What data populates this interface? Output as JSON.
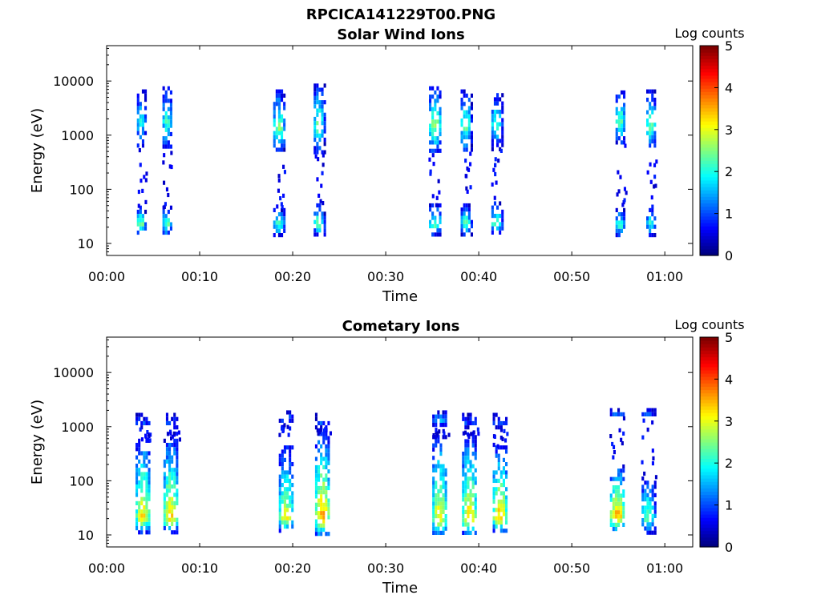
{
  "figure": {
    "title": "RPCICA141229T00.PNG"
  },
  "colorbar": {
    "label": "Log counts",
    "ticks": [
      "0",
      "1",
      "2",
      "3",
      "4",
      "5"
    ],
    "range": [
      0,
      5
    ],
    "colormap": "jet"
  },
  "chart_data": [
    {
      "type": "heatmap",
      "title": "Solar Wind Ions",
      "xlabel": "Time",
      "ylabel": "Energy (eV)",
      "x_ticks": [
        "00:00",
        "00:10",
        "00:20",
        "00:30",
        "00:40",
        "00:50",
        "01:00"
      ],
      "y_ticks": [
        "10",
        "100",
        "1000",
        "10000"
      ],
      "y_scale": "log",
      "xlim_minutes": [
        0,
        63
      ],
      "ylim": [
        6,
        45000
      ],
      "clim": [
        0,
        5
      ],
      "bursts": [
        {
          "time_min": 3.7,
          "width_min": 0.9,
          "high_energy": {
            "lo": 600,
            "hi": 7000,
            "peak": 1800,
            "level": 2.0
          },
          "low_energy": {
            "lo": 15,
            "hi": 50,
            "peak": 25,
            "level": 2.6
          }
        },
        {
          "time_min": 6.5,
          "width_min": 1.0,
          "high_energy": {
            "lo": 600,
            "hi": 8000,
            "peak": 1800,
            "level": 2.2
          },
          "low_energy": {
            "lo": 15,
            "hi": 50,
            "peak": 25,
            "level": 2.4
          }
        },
        {
          "time_min": 18.5,
          "width_min": 1.2,
          "high_energy": {
            "lo": 500,
            "hi": 7000,
            "peak": 1400,
            "level": 2.6
          },
          "low_energy": {
            "lo": 15,
            "hi": 45,
            "peak": 25,
            "level": 2.3
          }
        },
        {
          "time_min": 22.8,
          "width_min": 1.1,
          "high_energy": {
            "lo": 500,
            "hi": 9000,
            "peak": 1500,
            "level": 2.6
          },
          "low_energy": {
            "lo": 15,
            "hi": 55,
            "peak": 25,
            "level": 2.5
          }
        },
        {
          "time_min": 35.3,
          "width_min": 1.3,
          "high_energy": {
            "lo": 500,
            "hi": 8000,
            "peak": 1600,
            "level": 2.7
          },
          "low_energy": {
            "lo": 15,
            "hi": 55,
            "peak": 25,
            "level": 2.4
          }
        },
        {
          "time_min": 38.6,
          "width_min": 1.1,
          "high_energy": {
            "lo": 500,
            "hi": 7000,
            "peak": 1600,
            "level": 2.5
          },
          "low_energy": {
            "lo": 15,
            "hi": 55,
            "peak": 25,
            "level": 2.4
          }
        },
        {
          "time_min": 41.9,
          "width_min": 1.1,
          "high_energy": {
            "lo": 600,
            "hi": 6000,
            "peak": 1800,
            "level": 2.3
          },
          "low_energy": {
            "lo": 15,
            "hi": 60,
            "peak": 25,
            "level": 2.5
          }
        },
        {
          "time_min": 55.2,
          "width_min": 1.0,
          "high_energy": {
            "lo": 700,
            "hi": 8000,
            "peak": 2000,
            "level": 2.4
          },
          "low_energy": {
            "lo": 15,
            "hi": 45,
            "peak": 25,
            "level": 2.3
          }
        },
        {
          "time_min": 58.5,
          "width_min": 1.0,
          "high_energy": {
            "lo": 600,
            "hi": 7000,
            "peak": 1600,
            "level": 2.5
          },
          "low_energy": {
            "lo": 15,
            "hi": 45,
            "peak": 25,
            "level": 2.2
          }
        }
      ]
    },
    {
      "type": "heatmap",
      "title": "Cometary Ions",
      "xlabel": "Time",
      "ylabel": "Energy (eV)",
      "x_ticks": [
        "00:00",
        "00:10",
        "00:20",
        "00:30",
        "00:40",
        "00:50",
        "01:00"
      ],
      "y_ticks": [
        "10",
        "100",
        "1000",
        "10000"
      ],
      "y_scale": "log",
      "xlim_minutes": [
        0,
        63
      ],
      "ylim": [
        6,
        45000
      ],
      "clim": [
        0,
        5
      ],
      "bursts": [
        {
          "time_min": 3.9,
          "width_min": 1.6,
          "high_energy": {
            "lo": 1000,
            "hi": 1800,
            "peak": 1300,
            "level": 1.0
          },
          "low_energy": {
            "lo": 12,
            "hi": 600,
            "peak": 22,
            "level": 3.3
          }
        },
        {
          "time_min": 6.9,
          "width_min": 1.6,
          "high_energy": {
            "lo": 1000,
            "hi": 1800,
            "peak": 1300,
            "level": 1.0
          },
          "low_energy": {
            "lo": 12,
            "hi": 600,
            "peak": 22,
            "level": 3.4
          }
        },
        {
          "time_min": 19.3,
          "width_min": 1.6,
          "high_energy": {
            "lo": 1200,
            "hi": 2000,
            "peak": 1600,
            "level": 1.5
          },
          "low_energy": {
            "lo": 12,
            "hi": 450,
            "peak": 22,
            "level": 3.0
          }
        },
        {
          "time_min": 23.2,
          "width_min": 1.6,
          "high_energy": {
            "lo": 1000,
            "hi": 1800,
            "peak": 1300,
            "level": 1.0
          },
          "low_energy": {
            "lo": 10,
            "hi": 800,
            "peak": 22,
            "level": 3.6
          }
        },
        {
          "time_min": 35.8,
          "width_min": 1.6,
          "high_energy": {
            "lo": 1000,
            "hi": 2000,
            "peak": 1500,
            "level": 1.6
          },
          "low_energy": {
            "lo": 10,
            "hi": 700,
            "peak": 22,
            "level": 3.2
          }
        },
        {
          "time_min": 39.0,
          "width_min": 1.6,
          "high_energy": {
            "lo": 1000,
            "hi": 1800,
            "peak": 1300,
            "level": 1.0
          },
          "low_energy": {
            "lo": 10,
            "hi": 700,
            "peak": 22,
            "level": 3.3
          }
        },
        {
          "time_min": 42.3,
          "width_min": 1.6,
          "high_energy": {
            "lo": 1000,
            "hi": 1800,
            "peak": 1300,
            "level": 1.0
          },
          "low_energy": {
            "lo": 12,
            "hi": 450,
            "peak": 22,
            "level": 3.5
          }
        },
        {
          "time_min": 54.9,
          "width_min": 1.6,
          "high_energy": {
            "lo": 1700,
            "hi": 2200,
            "peak": 1900,
            "level": 1.4
          },
          "low_energy": {
            "lo": 12,
            "hi": 200,
            "peak": 22,
            "level": 3.7
          }
        },
        {
          "time_min": 58.2,
          "width_min": 1.4,
          "high_energy": {
            "lo": 1700,
            "hi": 2200,
            "peak": 1900,
            "level": 1.4
          },
          "low_energy": {
            "lo": 12,
            "hi": 120,
            "peak": 22,
            "level": 2.6
          }
        }
      ]
    }
  ]
}
